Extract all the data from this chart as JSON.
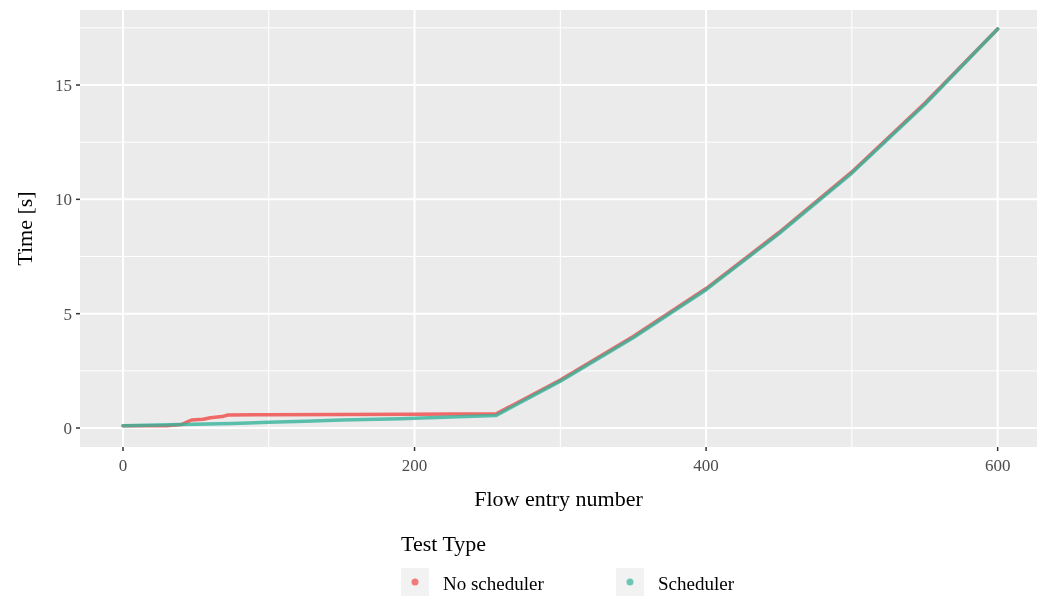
{
  "chart_data": {
    "type": "line",
    "xlabel": "Flow entry number",
    "ylabel": "Time [s]",
    "legend_title": "Test Type",
    "legend": "bottom",
    "grid": true,
    "line_style": "solid",
    "xlim": [
      -29.5,
      627
    ],
    "ylim": [
      -0.83,
      18.28
    ],
    "xticks": [
      0,
      {
        "value": 100,
        "label": null
      },
      200,
      {
        "value": 300,
        "label": null
      },
      400,
      {
        "value": 500,
        "label": null
      },
      600
    ],
    "yticks": [
      0,
      {
        "value": 2.5,
        "label": null
      },
      5,
      {
        "value": 7.5,
        "label": null
      },
      10,
      {
        "value": 12.5,
        "label": null
      },
      15,
      {
        "value": 17.5,
        "label": null
      }
    ],
    "series": [
      {
        "name": "No scheduler",
        "color": "#f04848",
        "x": [
          0,
          30,
          40,
          47,
          55,
          60,
          68,
          72,
          100,
          150,
          200,
          256,
          300,
          350,
          400,
          450,
          500,
          550,
          600
        ],
        "values": [
          0.1,
          0.1,
          0.15,
          0.35,
          0.38,
          0.45,
          0.5,
          0.57,
          0.58,
          0.59,
          0.6,
          0.62,
          2.1,
          4.0,
          6.1,
          8.55,
          11.2,
          14.2,
          17.45
        ]
      },
      {
        "name": "Scheduler",
        "color": "#34b49c",
        "x": [
          0,
          40,
          75,
          100,
          125,
          150,
          190,
          210,
          235,
          256,
          300,
          350,
          400,
          450,
          500,
          550,
          600
        ],
        "values": [
          0.1,
          0.15,
          0.2,
          0.25,
          0.3,
          0.35,
          0.4,
          0.45,
          0.5,
          0.55,
          2.05,
          3.95,
          6.05,
          8.5,
          11.15,
          14.15,
          17.45
        ]
      }
    ]
  }
}
